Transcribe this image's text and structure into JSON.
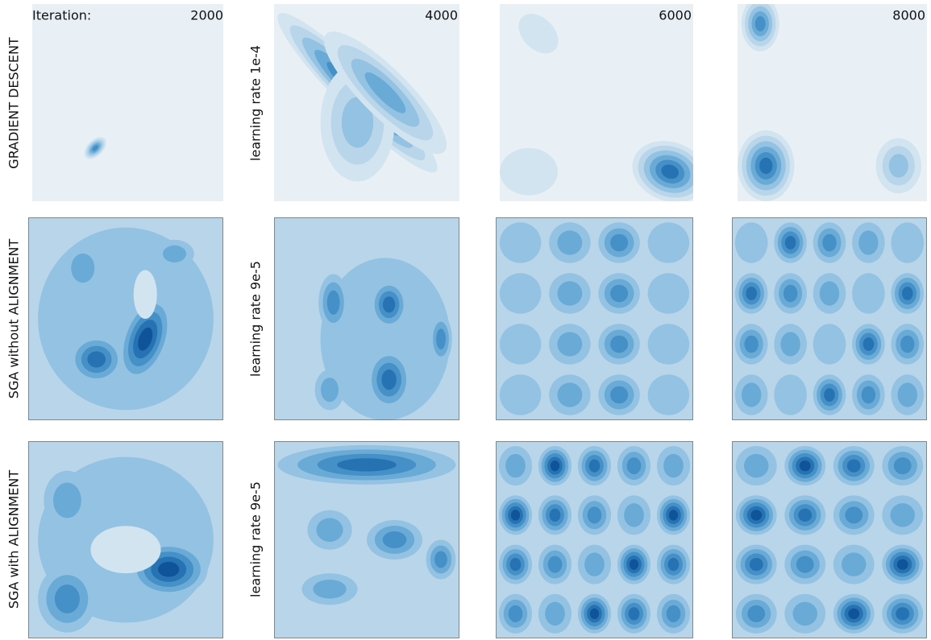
{
  "header": {
    "iteration_label": "Iteration:",
    "iterations": [
      "2000",
      "4000",
      "6000",
      "8000"
    ]
  },
  "rows": [
    {
      "label": "GRADIENT DESCENT",
      "learning_rate": "learning rate 1e-4"
    },
    {
      "label": "SGA without ALIGNMENT",
      "learning_rate": "learning rate 9e-5"
    },
    {
      "label": "SGA with ALIGNMENT",
      "learning_rate": "learning rate 9e-5"
    }
  ]
}
